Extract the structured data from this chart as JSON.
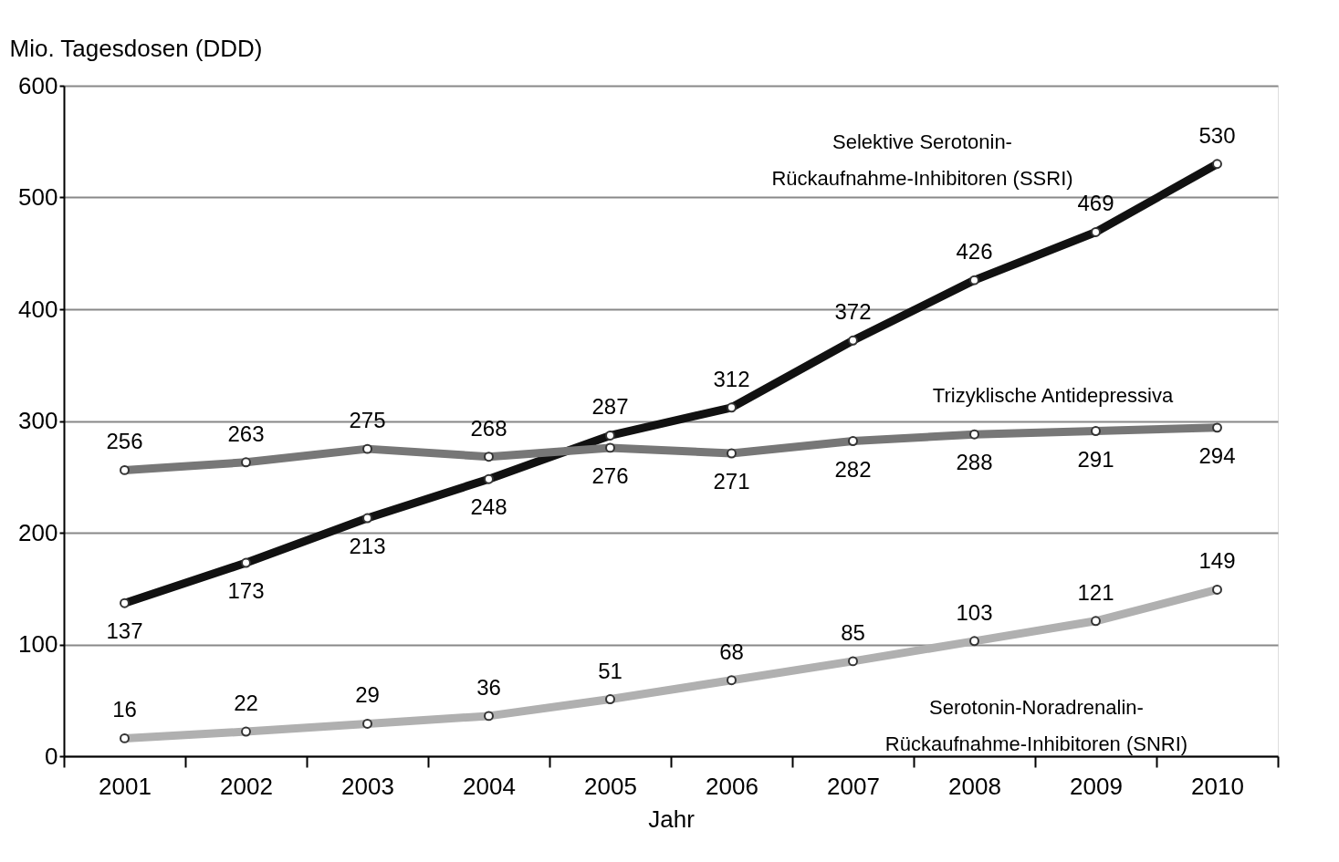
{
  "chart_data": {
    "type": "line",
    "ylabel": "Mio. Tagesdosen (DDD)",
    "xlabel": "Jahr",
    "categories": [
      "2001",
      "2002",
      "2003",
      "2004",
      "2005",
      "2006",
      "2007",
      "2008",
      "2009",
      "2010"
    ],
    "series": [
      {
        "name": "Selektive Serotonin-\nRückaufnahme-Inhibitoren (SSRI)",
        "color": "#111111",
        "values": [
          137,
          173,
          213,
          248,
          287,
          312,
          372,
          426,
          469,
          530
        ]
      },
      {
        "name": "Trizyklische Antidepressiva",
        "color": "#777777",
        "values": [
          256,
          263,
          275,
          268,
          276,
          271,
          282,
          288,
          291,
          294
        ]
      },
      {
        "name": "Serotonin-Noradrenalin-\nRückaufnahme-Inhibitoren (SNRI)",
        "color": "#b0b0b0",
        "values": [
          16,
          22,
          29,
          36,
          51,
          68,
          85,
          103,
          121,
          149
        ]
      }
    ],
    "ylim": [
      0,
      600
    ],
    "yticks": [
      0,
      100,
      200,
      300,
      400,
      500,
      600
    ],
    "grid": "y",
    "marker": "circle",
    "line_style": "solid",
    "data_labels": true
  }
}
